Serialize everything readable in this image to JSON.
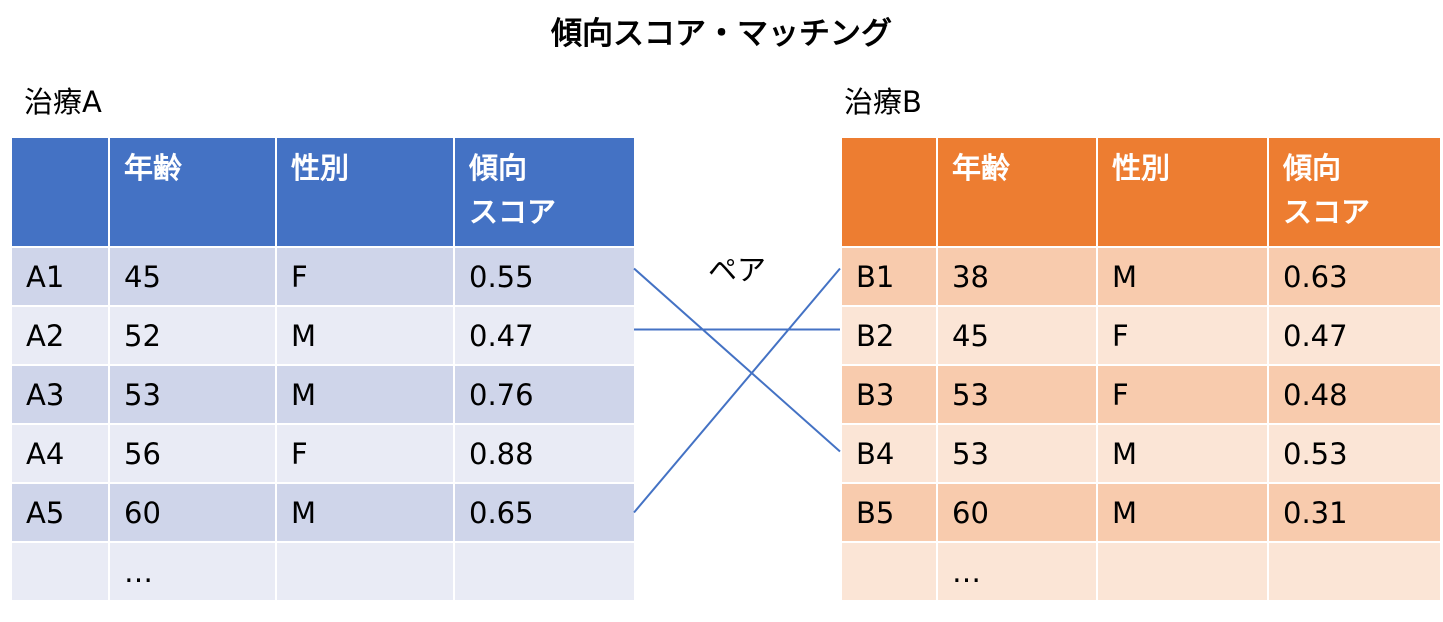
{
  "title": "傾向スコア・マッチング",
  "treatment_a": {
    "label": "治療A",
    "headers": [
      "",
      "年齢",
      "性別",
      "傾向\nスコア"
    ],
    "rows": [
      [
        "A1",
        "45",
        "F",
        "0.55"
      ],
      [
        "A2",
        "52",
        "M",
        "0.47"
      ],
      [
        "A3",
        "53",
        "M",
        "0.76"
      ],
      [
        "A4",
        "56",
        "F",
        "0.88"
      ],
      [
        "A5",
        "60",
        "M",
        "0.65"
      ],
      [
        "",
        "…",
        "",
        ""
      ]
    ]
  },
  "treatment_b": {
    "label": "治療B",
    "headers": [
      "",
      "年齢",
      "性別",
      "傾向\nスコア"
    ],
    "rows": [
      [
        "B1",
        "38",
        "M",
        "0.63"
      ],
      [
        "B2",
        "45",
        "F",
        "0.47"
      ],
      [
        "B3",
        "53",
        "F",
        "0.48"
      ],
      [
        "B4",
        "53",
        "M",
        "0.53"
      ],
      [
        "B5",
        "60",
        "M",
        "0.31"
      ],
      [
        "",
        "…",
        "",
        ""
      ]
    ]
  },
  "pair_label": "ペア",
  "pairs": [
    {
      "a": "A1",
      "b": "B4"
    },
    {
      "a": "A2",
      "b": "B2"
    },
    {
      "a": "A5",
      "b": "B1"
    }
  ],
  "colors": {
    "a_header": "#4472c4",
    "a_row_dark": "#cfd5ea",
    "a_row_light": "#e9ebf5",
    "b_header": "#ed7d31",
    "b_row_dark": "#f8cbad",
    "b_row_light": "#fbe5d6",
    "link": "#4472c4"
  }
}
